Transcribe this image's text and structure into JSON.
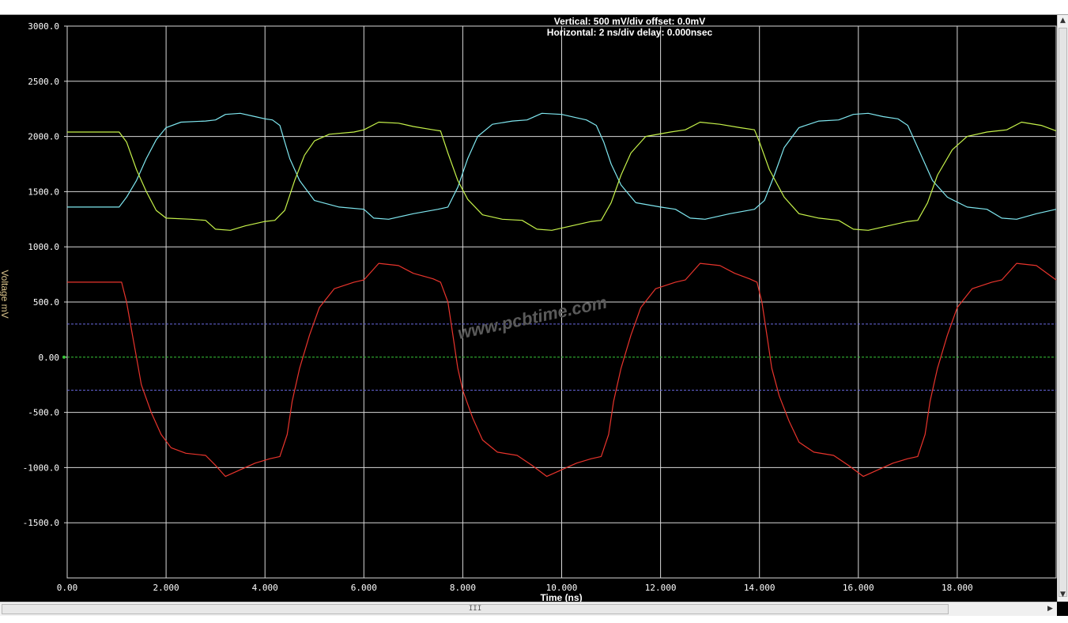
{
  "window": {
    "scroll_grip": "III",
    "icons": [
      "scroll-up-arrow-icon",
      "scroll-down-arrow-icon",
      "scroll-right-arrow-icon",
      "scrollbar-grip-icon"
    ]
  },
  "chart_data": {
    "type": "line",
    "header_line1": "Vertical: 500 mV/div  offset: 0.0mV",
    "header_line2": "Horizontal: 2 ns/div  delay: 0.000nsec",
    "xlabel": "Time  (ns)",
    "ylabel": "Voltage  mV",
    "xlim": [
      0,
      20
    ],
    "ylim": [
      -2000,
      3000
    ],
    "x_tick_labels": [
      "0.00",
      "2.000",
      "4.000",
      "6.000",
      "8.000",
      "10.000",
      "12.000",
      "14.000",
      "16.000",
      "18.000"
    ],
    "y_tick_labels": [
      "3000.0",
      "2500.0",
      "2000.0",
      "1500.0",
      "1000.0",
      "500.0",
      "0.00",
      "-500.0",
      "-1000.0",
      "-1500.0"
    ],
    "watermark": "www.pcbtime.com",
    "reference_lines": [
      {
        "y": 300,
        "style": "dashed",
        "color": "#6a6adf"
      },
      {
        "y": 0,
        "style": "dashed",
        "color": "#39c839"
      },
      {
        "y": -300,
        "style": "dashed",
        "color": "#6a6adf"
      }
    ],
    "series": [
      {
        "color": "#7fe7f0",
        "points": [
          [
            0,
            1360
          ],
          [
            1.05,
            1360
          ],
          [
            1.2,
            1450
          ],
          [
            1.4,
            1600
          ],
          [
            1.6,
            1800
          ],
          [
            1.8,
            1970
          ],
          [
            2.0,
            2080
          ],
          [
            2.3,
            2130
          ],
          [
            2.8,
            2140
          ],
          [
            3.0,
            2150
          ],
          [
            3.2,
            2200
          ],
          [
            3.5,
            2210
          ],
          [
            3.8,
            2180
          ],
          [
            4.0,
            2160
          ],
          [
            4.15,
            2150
          ],
          [
            4.3,
            2100
          ],
          [
            4.4,
            1950
          ],
          [
            4.5,
            1800
          ],
          [
            4.7,
            1600
          ],
          [
            5.0,
            1420
          ],
          [
            5.5,
            1360
          ],
          [
            6.0,
            1340
          ],
          [
            6.2,
            1260
          ],
          [
            6.5,
            1250
          ],
          [
            7.0,
            1300
          ],
          [
            7.5,
            1340
          ],
          [
            7.7,
            1360
          ],
          [
            7.9,
            1540
          ],
          [
            8.1,
            1800
          ],
          [
            8.3,
            2000
          ],
          [
            8.6,
            2110
          ],
          [
            9.0,
            2140
          ],
          [
            9.3,
            2150
          ],
          [
            9.6,
            2210
          ],
          [
            10.0,
            2200
          ],
          [
            10.3,
            2170
          ],
          [
            10.5,
            2150
          ],
          [
            10.7,
            2100
          ],
          [
            10.85,
            1950
          ],
          [
            11.0,
            1750
          ],
          [
            11.2,
            1560
          ],
          [
            11.5,
            1400
          ],
          [
            12.0,
            1360
          ],
          [
            12.3,
            1340
          ],
          [
            12.6,
            1260
          ],
          [
            12.9,
            1250
          ],
          [
            13.4,
            1300
          ],
          [
            13.9,
            1340
          ],
          [
            14.1,
            1420
          ],
          [
            14.3,
            1650
          ],
          [
            14.5,
            1900
          ],
          [
            14.8,
            2080
          ],
          [
            15.2,
            2140
          ],
          [
            15.6,
            2150
          ],
          [
            15.9,
            2200
          ],
          [
            16.2,
            2210
          ],
          [
            16.5,
            2180
          ],
          [
            16.8,
            2160
          ],
          [
            17.0,
            2100
          ],
          [
            17.2,
            1900
          ],
          [
            17.5,
            1600
          ],
          [
            17.8,
            1450
          ],
          [
            18.2,
            1360
          ],
          [
            18.6,
            1340
          ],
          [
            18.9,
            1260
          ],
          [
            19.2,
            1250
          ],
          [
            19.6,
            1300
          ],
          [
            20.0,
            1340
          ]
        ]
      },
      {
        "color": "#c6f24a",
        "points": [
          [
            0,
            2040
          ],
          [
            1.05,
            2040
          ],
          [
            1.2,
            1950
          ],
          [
            1.4,
            1700
          ],
          [
            1.6,
            1500
          ],
          [
            1.8,
            1330
          ],
          [
            2.0,
            1260
          ],
          [
            2.5,
            1250
          ],
          [
            2.8,
            1240
          ],
          [
            3.0,
            1160
          ],
          [
            3.3,
            1150
          ],
          [
            3.6,
            1190
          ],
          [
            4.0,
            1230
          ],
          [
            4.2,
            1240
          ],
          [
            4.4,
            1330
          ],
          [
            4.6,
            1600
          ],
          [
            4.8,
            1830
          ],
          [
            5.0,
            1960
          ],
          [
            5.3,
            2020
          ],
          [
            5.8,
            2040
          ],
          [
            6.0,
            2060
          ],
          [
            6.3,
            2130
          ],
          [
            6.7,
            2120
          ],
          [
            7.0,
            2090
          ],
          [
            7.4,
            2060
          ],
          [
            7.55,
            2050
          ],
          [
            7.7,
            1850
          ],
          [
            7.9,
            1600
          ],
          [
            8.1,
            1430
          ],
          [
            8.4,
            1290
          ],
          [
            8.8,
            1250
          ],
          [
            9.2,
            1240
          ],
          [
            9.5,
            1160
          ],
          [
            9.8,
            1150
          ],
          [
            10.2,
            1190
          ],
          [
            10.6,
            1230
          ],
          [
            10.8,
            1240
          ],
          [
            11.0,
            1400
          ],
          [
            11.2,
            1650
          ],
          [
            11.4,
            1850
          ],
          [
            11.7,
            2000
          ],
          [
            12.2,
            2040
          ],
          [
            12.5,
            2060
          ],
          [
            12.8,
            2130
          ],
          [
            13.2,
            2110
          ],
          [
            13.6,
            2080
          ],
          [
            13.9,
            2060
          ],
          [
            14.0,
            1950
          ],
          [
            14.2,
            1700
          ],
          [
            14.5,
            1450
          ],
          [
            14.8,
            1300
          ],
          [
            15.2,
            1260
          ],
          [
            15.6,
            1240
          ],
          [
            15.9,
            1160
          ],
          [
            16.2,
            1150
          ],
          [
            16.6,
            1190
          ],
          [
            17.0,
            1230
          ],
          [
            17.2,
            1240
          ],
          [
            17.4,
            1400
          ],
          [
            17.6,
            1650
          ],
          [
            17.9,
            1880
          ],
          [
            18.2,
            2000
          ],
          [
            18.6,
            2040
          ],
          [
            19.0,
            2060
          ],
          [
            19.3,
            2130
          ],
          [
            19.7,
            2100
          ],
          [
            20.0,
            2050
          ]
        ]
      },
      {
        "color": "#e8342c",
        "points": [
          [
            0,
            680
          ],
          [
            1.1,
            680
          ],
          [
            1.2,
            500
          ],
          [
            1.3,
            250
          ],
          [
            1.4,
            0
          ],
          [
            1.5,
            -250
          ],
          [
            1.7,
            -500
          ],
          [
            1.9,
            -700
          ],
          [
            2.1,
            -820
          ],
          [
            2.4,
            -870
          ],
          [
            2.8,
            -890
          ],
          [
            3.0,
            -980
          ],
          [
            3.2,
            -1080
          ],
          [
            3.5,
            -1020
          ],
          [
            3.8,
            -960
          ],
          [
            4.1,
            -920
          ],
          [
            4.3,
            -900
          ],
          [
            4.45,
            -700
          ],
          [
            4.55,
            -400
          ],
          [
            4.7,
            -100
          ],
          [
            4.9,
            200
          ],
          [
            5.1,
            450
          ],
          [
            5.4,
            620
          ],
          [
            5.8,
            680
          ],
          [
            6.0,
            700
          ],
          [
            6.3,
            850
          ],
          [
            6.7,
            830
          ],
          [
            7.0,
            760
          ],
          [
            7.4,
            710
          ],
          [
            7.55,
            680
          ],
          [
            7.7,
            500
          ],
          [
            7.8,
            200
          ],
          [
            7.9,
            -100
          ],
          [
            8.0,
            -300
          ],
          [
            8.2,
            -550
          ],
          [
            8.4,
            -750
          ],
          [
            8.7,
            -860
          ],
          [
            9.1,
            -890
          ],
          [
            9.4,
            -980
          ],
          [
            9.7,
            -1080
          ],
          [
            10.0,
            -1020
          ],
          [
            10.3,
            -960
          ],
          [
            10.6,
            -920
          ],
          [
            10.8,
            -900
          ],
          [
            10.95,
            -700
          ],
          [
            11.05,
            -400
          ],
          [
            11.2,
            -100
          ],
          [
            11.4,
            200
          ],
          [
            11.6,
            450
          ],
          [
            11.9,
            620
          ],
          [
            12.3,
            680
          ],
          [
            12.5,
            700
          ],
          [
            12.8,
            850
          ],
          [
            13.2,
            830
          ],
          [
            13.5,
            760
          ],
          [
            13.8,
            710
          ],
          [
            13.95,
            680
          ],
          [
            14.05,
            500
          ],
          [
            14.15,
            200
          ],
          [
            14.25,
            -100
          ],
          [
            14.4,
            -350
          ],
          [
            14.6,
            -580
          ],
          [
            14.8,
            -770
          ],
          [
            15.1,
            -860
          ],
          [
            15.5,
            -890
          ],
          [
            15.8,
            -980
          ],
          [
            16.1,
            -1080
          ],
          [
            16.4,
            -1020
          ],
          [
            16.7,
            -960
          ],
          [
            17.0,
            -920
          ],
          [
            17.2,
            -900
          ],
          [
            17.35,
            -700
          ],
          [
            17.45,
            -400
          ],
          [
            17.6,
            -100
          ],
          [
            17.8,
            200
          ],
          [
            18.0,
            450
          ],
          [
            18.3,
            620
          ],
          [
            18.7,
            680
          ],
          [
            18.9,
            700
          ],
          [
            19.2,
            850
          ],
          [
            19.6,
            830
          ],
          [
            20.0,
            700
          ]
        ]
      }
    ]
  }
}
